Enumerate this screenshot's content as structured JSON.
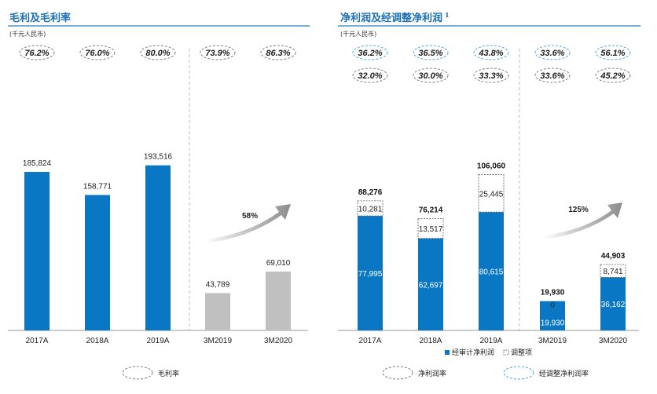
{
  "colors": {
    "title": "#1c6fb5",
    "bar_blue": "#0a77c4",
    "bar_gray": "#c0c0c0",
    "ellipse_gray": "#8a8a8a",
    "ellipse_blue": "#5ab0e6"
  },
  "chart_data": [
    {
      "type": "bar",
      "title": "毛利及毛利率",
      "unit": "(千元人民币)",
      "categories": [
        "2017A",
        "2018A",
        "2019A",
        "3M2019",
        "3M2020"
      ],
      "values": [
        185824,
        158771,
        193516,
        43789,
        69010
      ],
      "value_labels": [
        "185,824",
        "158,771",
        "193,516",
        "43,789",
        "69,010"
      ],
      "margins": [
        "76.2%",
        "76.0%",
        "80.0%",
        "73.9%",
        "86.3%"
      ],
      "growth": "58%",
      "legend": [
        "毛利率"
      ],
      "ylim": [
        0,
        230000
      ]
    },
    {
      "type": "bar",
      "title": "净利润及经调整净利润",
      "title_superscript": "1",
      "unit": "(千元人民币)",
      "categories": [
        "2017A",
        "2018A",
        "2019A",
        "3M2019",
        "3M2020"
      ],
      "series": [
        {
          "name": "经审计净利润",
          "values": [
            77995,
            62697,
            80615,
            19930,
            36162
          ],
          "labels": [
            "77,995",
            "62,697",
            "80,615",
            "19,930",
            "36,162"
          ]
        },
        {
          "name": "调整项",
          "values": [
            10281,
            13517,
            25445,
            0,
            8741
          ],
          "labels": [
            "10,281",
            "13,517",
            "25,445",
            "0",
            "8,741"
          ]
        }
      ],
      "totals": [
        88276,
        76214,
        106060,
        19930,
        44903
      ],
      "total_labels": [
        "88,276",
        "76,214",
        "106,060",
        "19,930",
        "44,903"
      ],
      "adjusted_margins": [
        "36.2%",
        "36.5%",
        "43.8%",
        "33.6%",
        "56.1%"
      ],
      "net_margins": [
        "32.0%",
        "30.0%",
        "33.3%",
        "33.6%",
        "45.2%"
      ],
      "growth": "125%",
      "legend_bottom": [
        "净利润率",
        "经调整净利润率"
      ],
      "ylim": [
        0,
        155000
      ]
    }
  ]
}
